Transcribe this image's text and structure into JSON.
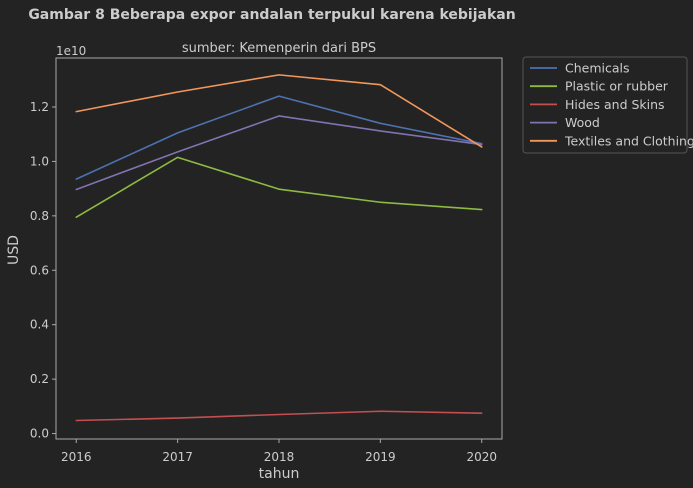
{
  "chart_data": {
    "type": "line",
    "suptitle": "Gambar 8 Beberapa expor andalan terpukul karena kebijakan",
    "title": "sumber: Kemenperin dari BPS",
    "xlabel": "tahun",
    "ylabel": "USD",
    "offset_text": "1e10",
    "x": [
      2016,
      2017,
      2018,
      2019,
      2020
    ],
    "x_ticks": [
      "2016",
      "2017",
      "2018",
      "2019",
      "2020"
    ],
    "y_ticks": [
      0,
      0.2,
      0.4,
      0.6,
      0.8,
      1.0,
      1.2
    ],
    "y_tick_labels": [
      "0.0",
      "0.2",
      "0.4",
      "0.6",
      "0.8",
      "1.0",
      "1.2"
    ],
    "ylim": [
      -0.02,
      1.38
    ],
    "xlim": [
      2015.8,
      2020.2
    ],
    "grid": false,
    "legend_position": "outside-top-right",
    "series": [
      {
        "name": "Chemicals",
        "color": "#4c72b0",
        "values": [
          0.935,
          1.105,
          1.24,
          1.14,
          1.065
        ]
      },
      {
        "name": "Plastic or rubber",
        "color": "#8eba42",
        "values": [
          0.795,
          1.015,
          0.898,
          0.85,
          0.823
        ]
      },
      {
        "name": "Hides and Skins",
        "color": "#c44e52",
        "values": [
          0.048,
          0.057,
          0.07,
          0.082,
          0.075
        ]
      },
      {
        "name": "Wood",
        "color": "#8172b2",
        "values": [
          0.897,
          1.035,
          1.167,
          1.112,
          1.062
        ]
      },
      {
        "name": "Textiles and Clothing",
        "color": "#f2975a",
        "values": [
          1.183,
          1.255,
          1.318,
          1.282,
          1.053
        ]
      }
    ]
  }
}
